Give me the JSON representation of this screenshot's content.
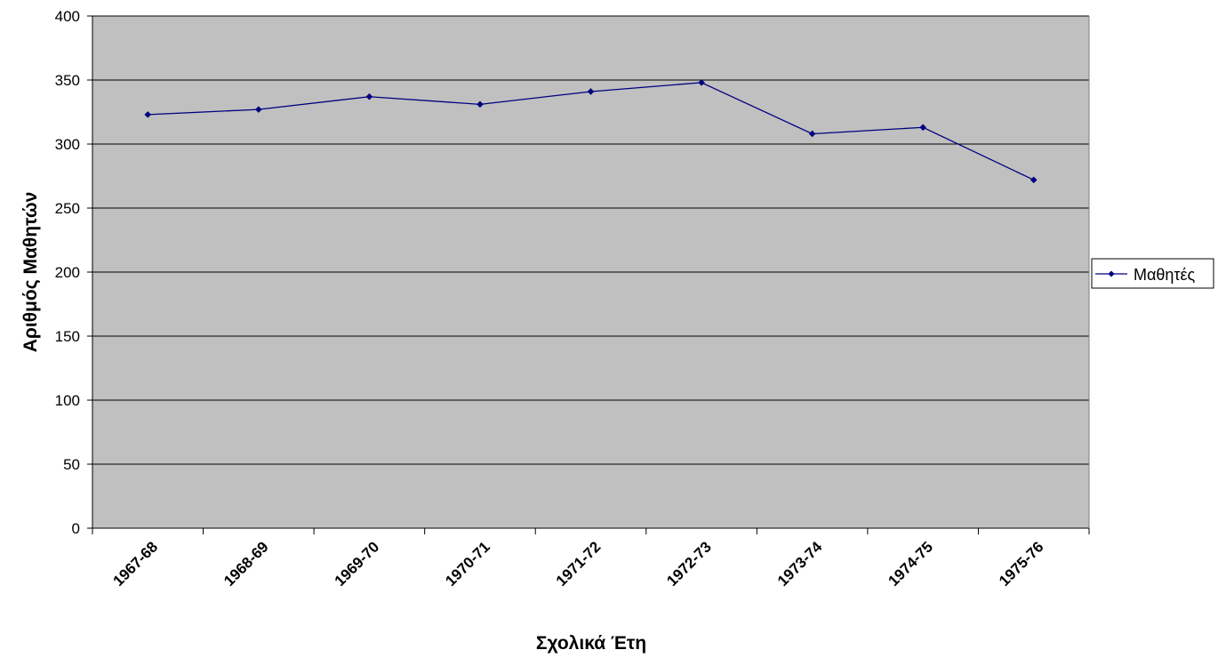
{
  "chart_data": {
    "type": "line",
    "categories": [
      "1967-68",
      "1968-69",
      "1969-70",
      "1970-71",
      "1971-72",
      "1972-73",
      "1973-74",
      "1974-75",
      "1975-76"
    ],
    "series": [
      {
        "name": "Μαθητές",
        "values": [
          323,
          327,
          337,
          331,
          341,
          348,
          308,
          313,
          272
        ],
        "color": "#000080",
        "marker": "diamond"
      }
    ],
    "xlabel": "Σχολικά Έτη",
    "ylabel": "Αριθμός Μαθητών",
    "ylim": [
      0,
      400
    ],
    "yticks": [
      0,
      50,
      100,
      150,
      200,
      250,
      300,
      350,
      400
    ],
    "grid": true,
    "plot_background": "#C0C0C0",
    "legend_position": "right"
  }
}
